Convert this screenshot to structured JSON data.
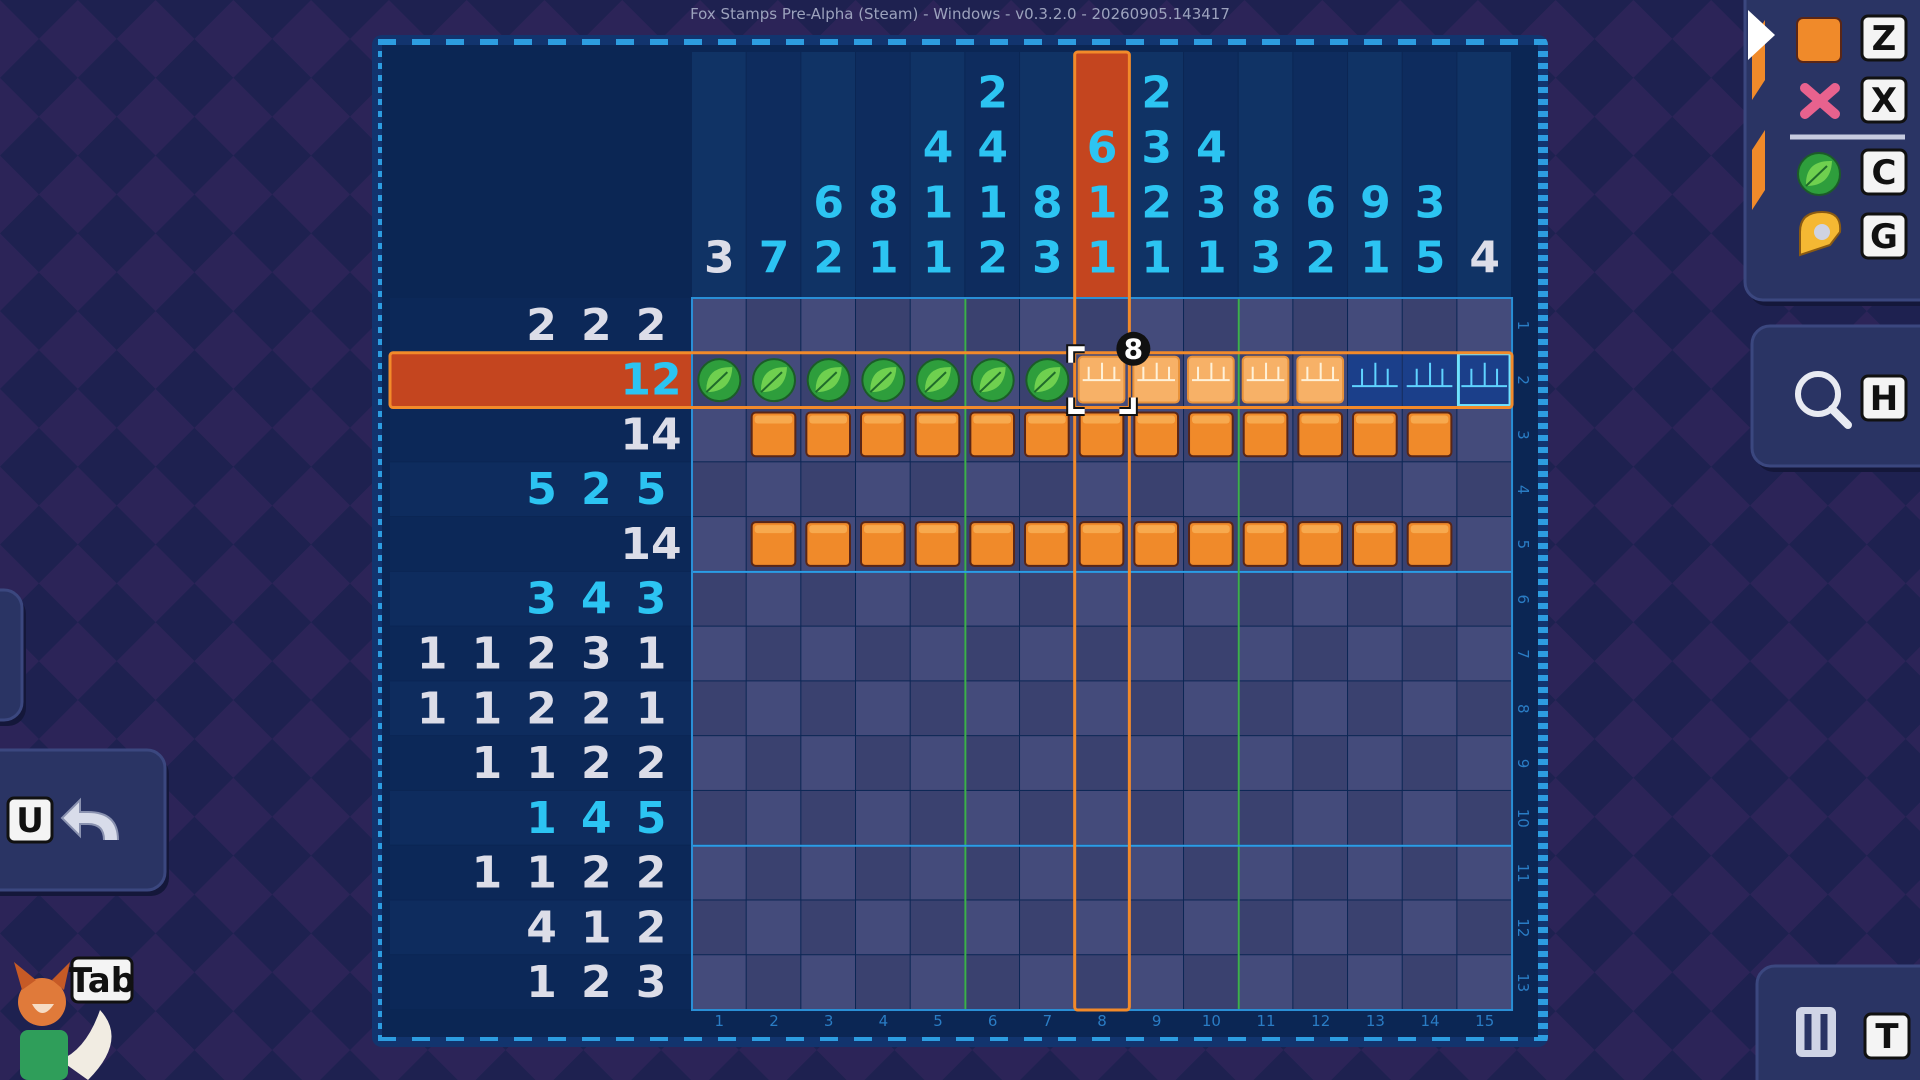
{
  "window_title": "Fox Stamps Pre-Alpha (Steam) - Windows - v0.3.2.0 - 20260905.143417",
  "puzzle": {
    "column_clues": [
      {
        "numbers": [
          3
        ],
        "color": "#dcdde8"
      },
      {
        "numbers": [
          7
        ],
        "color": "#2cc4f2"
      },
      {
        "numbers": [
          6,
          2
        ],
        "color": "#2cc4f2"
      },
      {
        "numbers": [
          8,
          1
        ],
        "color": "#2cc4f2"
      },
      {
        "numbers": [
          4,
          1,
          1
        ],
        "color": "#2cc4f2"
      },
      {
        "numbers": [
          2,
          4,
          1,
          2
        ],
        "color": "#2cc4f2"
      },
      {
        "numbers": [
          8,
          3
        ],
        "color": "#2cc4f2"
      },
      {
        "numbers": [
          6,
          1,
          1
        ],
        "color": "#2cc4f2"
      },
      {
        "numbers": [
          2,
          3,
          2,
          1
        ],
        "color": "#2cc4f2"
      },
      {
        "numbers": [
          4,
          3,
          1
        ],
        "color": "#2cc4f2"
      },
      {
        "numbers": [
          8,
          3
        ],
        "color": "#2cc4f2"
      },
      {
        "numbers": [
          6,
          2
        ],
        "color": "#2cc4f2"
      },
      {
        "numbers": [
          9,
          1
        ],
        "color": "#2cc4f2"
      },
      {
        "numbers": [
          3,
          5
        ],
        "color": "#2cc4f2"
      },
      {
        "numbers": [
          4
        ],
        "color": "#dcdde8"
      }
    ],
    "row_clues": [
      {
        "numbers": [
          2,
          2,
          2
        ],
        "color": "#dcdde8"
      },
      {
        "numbers": [
          12
        ],
        "color": "#2cc4f2"
      },
      {
        "numbers": [
          14
        ],
        "color": "#dcdde8"
      },
      {
        "numbers": [
          5,
          2,
          5
        ],
        "color": "#2cc4f2"
      },
      {
        "numbers": [
          14
        ],
        "color": "#dcdde8"
      },
      {
        "numbers": [
          3,
          4,
          3
        ],
        "color": "#2cc4f2"
      },
      {
        "numbers": [
          1,
          1,
          2,
          3,
          1
        ],
        "color": "#dcdde8"
      },
      {
        "numbers": [
          1,
          1,
          2,
          2,
          1
        ],
        "color": "#dcdde8"
      },
      {
        "numbers": [
          1,
          1,
          2,
          2
        ],
        "color": "#dcdde8"
      },
      {
        "numbers": [
          1,
          4,
          5
        ],
        "color": "#2cc4f2"
      },
      {
        "numbers": [
          1,
          1,
          2,
          2
        ],
        "color": "#dcdde8"
      },
      {
        "numbers": [
          4,
          1,
          2
        ],
        "color": "#dcdde8"
      },
      {
        "numbers": [
          1,
          2,
          3
        ],
        "color": "#dcdde8"
      }
    ],
    "column_numbers": [
      1,
      2,
      3,
      4,
      5,
      6,
      7,
      8,
      9,
      10,
      11,
      12,
      13,
      14,
      15
    ],
    "row_numbers": [
      1,
      2,
      3,
      4,
      5,
      6,
      7,
      8,
      9,
      10,
      11,
      12,
      13
    ],
    "cells": [
      [
        "empty",
        "empty",
        "empty",
        "empty",
        "empty",
        "empty",
        "empty",
        "empty",
        "empty",
        "empty",
        "empty",
        "empty",
        "empty",
        "empty",
        "empty"
      ],
      [
        "leaf",
        "leaf",
        "leaf",
        "leaf",
        "leaf",
        "leaf",
        "leaf",
        "preview",
        "preview",
        "preview",
        "preview",
        "preview",
        "ruler",
        "ruler",
        "ruler-end"
      ],
      [
        "empty",
        "fill",
        "fill",
        "fill",
        "fill",
        "fill",
        "fill",
        "fill",
        "fill",
        "fill",
        "fill",
        "fill",
        "fill",
        "fill",
        "empty"
      ],
      [
        "empty",
        "empty",
        "empty",
        "empty",
        "empty",
        "empty",
        "empty",
        "empty",
        "empty",
        "empty",
        "empty",
        "empty",
        "empty",
        "empty",
        "empty"
      ],
      [
        "empty",
        "fill",
        "fill",
        "fill",
        "fill",
        "fill",
        "fill",
        "fill",
        "fill",
        "fill",
        "fill",
        "fill",
        "fill",
        "fill",
        "empty"
      ],
      [
        "empty",
        "empty",
        "empty",
        "empty",
        "empty",
        "empty",
        "empty",
        "empty",
        "empty",
        "empty",
        "empty",
        "empty",
        "empty",
        "empty",
        "empty"
      ],
      [
        "empty",
        "empty",
        "empty",
        "empty",
        "empty",
        "empty",
        "empty",
        "empty",
        "empty",
        "empty",
        "empty",
        "empty",
        "empty",
        "empty",
        "empty"
      ],
      [
        "empty",
        "empty",
        "empty",
        "empty",
        "empty",
        "empty",
        "empty",
        "empty",
        "empty",
        "empty",
        "empty",
        "empty",
        "empty",
        "empty",
        "empty"
      ],
      [
        "empty",
        "empty",
        "empty",
        "empty",
        "empty",
        "empty",
        "empty",
        "empty",
        "empty",
        "empty",
        "empty",
        "empty",
        "empty",
        "empty",
        "empty"
      ],
      [
        "empty",
        "empty",
        "empty",
        "empty",
        "empty",
        "empty",
        "empty",
        "empty",
        "empty",
        "empty",
        "empty",
        "empty",
        "empty",
        "empty",
        "empty"
      ],
      [
        "empty",
        "empty",
        "empty",
        "empty",
        "empty",
        "empty",
        "empty",
        "empty",
        "empty",
        "empty",
        "empty",
        "empty",
        "empty",
        "empty",
        "empty"
      ],
      [
        "empty",
        "empty",
        "empty",
        "empty",
        "empty",
        "empty",
        "empty",
        "empty",
        "empty",
        "empty",
        "empty",
        "empty",
        "empty",
        "empty",
        "empty"
      ],
      [
        "empty",
        "empty",
        "empty",
        "empty",
        "empty",
        "empty",
        "empty",
        "empty",
        "empty",
        "empty",
        "empty",
        "empty",
        "empty",
        "empty",
        "empty"
      ]
    ],
    "highlight_row": 2,
    "highlight_column": 8,
    "selection_count": 8
  },
  "controls": {
    "tool_keys": [
      "Z",
      "X",
      "C",
      "G"
    ],
    "zoom_key": "H",
    "undo_key": "U",
    "character_key": "Tab",
    "pause_key": "T"
  }
}
